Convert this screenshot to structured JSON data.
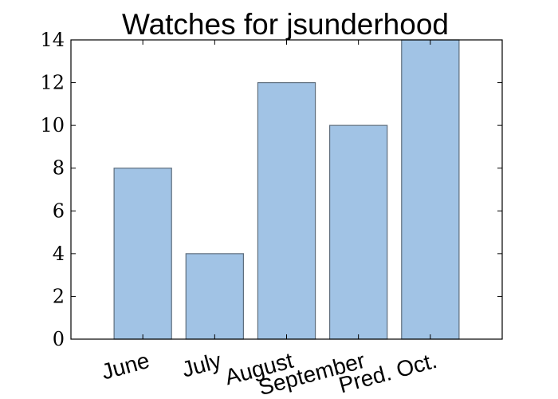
{
  "chart_data": {
    "type": "bar",
    "title": "Watches for jsunderhood",
    "xlabel": "",
    "ylabel": "",
    "categories": [
      "June",
      "July",
      "August",
      "September",
      "Pred. Oct."
    ],
    "values": [
      8,
      4,
      12,
      10,
      14
    ],
    "ylim": [
      0,
      14
    ],
    "yticks": [
      "0",
      "2",
      "4",
      "6",
      "8",
      "10",
      "12",
      "14"
    ],
    "grid": false,
    "legend": "none",
    "colors": {
      "bar_fill": "#a1c3e5",
      "bar_edge": "#5f6e7d",
      "axis": "#000000",
      "background": "#ffffff"
    }
  }
}
